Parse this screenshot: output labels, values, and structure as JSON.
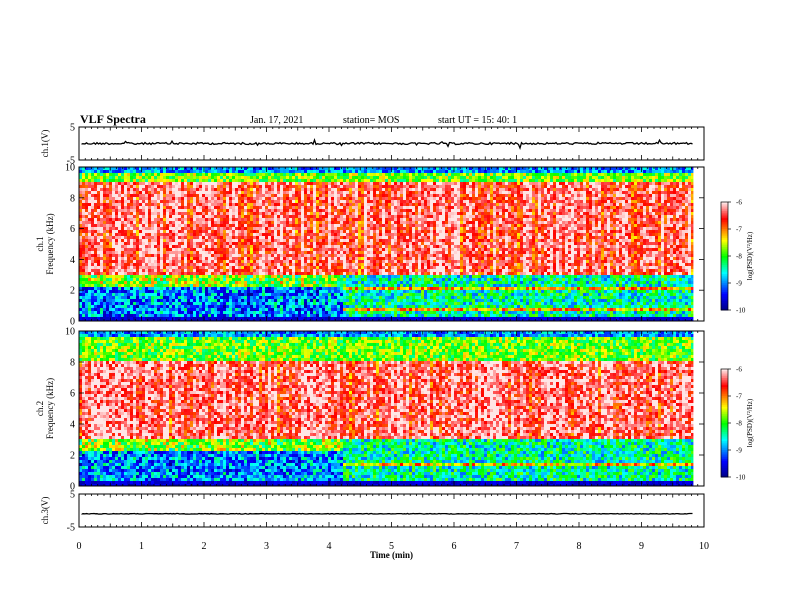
{
  "header": {
    "title": "VLF Spectra",
    "date": "Jan. 17, 2021",
    "station": "station= MOS",
    "start": "start UT =   15: 40: 1"
  },
  "chart_data": [
    {
      "id": "ch1-waveform",
      "type": "line",
      "ylabel": "ch.1(V)",
      "ylim": [
        -5,
        5
      ],
      "yticks": [
        "5",
        "-5"
      ],
      "baseline_value": 0
    },
    {
      "id": "ch1-spectrogram",
      "type": "heatmap",
      "ylabel": "ch.1\nFrequency (kHz)",
      "ylim": [
        0,
        10
      ],
      "yticks": [
        "0",
        "2",
        "4",
        "6",
        "8",
        "10"
      ],
      "colorbar": {
        "label": "log(PSD)(V²/Hz)",
        "ticks": [
          "-6",
          "-7",
          "-8",
          "-9",
          "-10"
        ],
        "range": [
          -10,
          -6
        ]
      },
      "transition_time_min": 4.2,
      "intense_band_khz": [
        3,
        9
      ]
    },
    {
      "id": "ch2-spectrogram",
      "type": "heatmap",
      "ylabel": "ch.2\nFrequency (kHz)",
      "ylim": [
        0,
        10
      ],
      "yticks": [
        "0",
        "2",
        "4",
        "6",
        "8",
        "10"
      ],
      "colorbar": {
        "label": "log(PSD)(V²/Hz)",
        "ticks": [
          "-6",
          "-7",
          "-8",
          "-9",
          "-10"
        ],
        "range": [
          -10,
          -6
        ]
      },
      "transition_time_min": 4.2,
      "intense_band_khz": [
        3,
        8
      ]
    },
    {
      "id": "ch3-waveform",
      "type": "line",
      "ylabel": "ch.3(V)",
      "ylim": [
        -5,
        5
      ],
      "yticks": [
        "5",
        "-5"
      ],
      "baseline_value": -1
    }
  ],
  "xaxis": {
    "label": "Time (min)",
    "xlim": [
      0,
      10
    ],
    "ticks": [
      "0",
      "1",
      "2",
      "3",
      "4",
      "5",
      "6",
      "7",
      "8",
      "9",
      "10"
    ],
    "data_end_min": 9.83
  },
  "colors": {
    "colormap": [
      "#00007f",
      "#0000ff",
      "#00ffff",
      "#00ff00",
      "#ffff00",
      "#ff0000",
      "#ffffff"
    ]
  }
}
